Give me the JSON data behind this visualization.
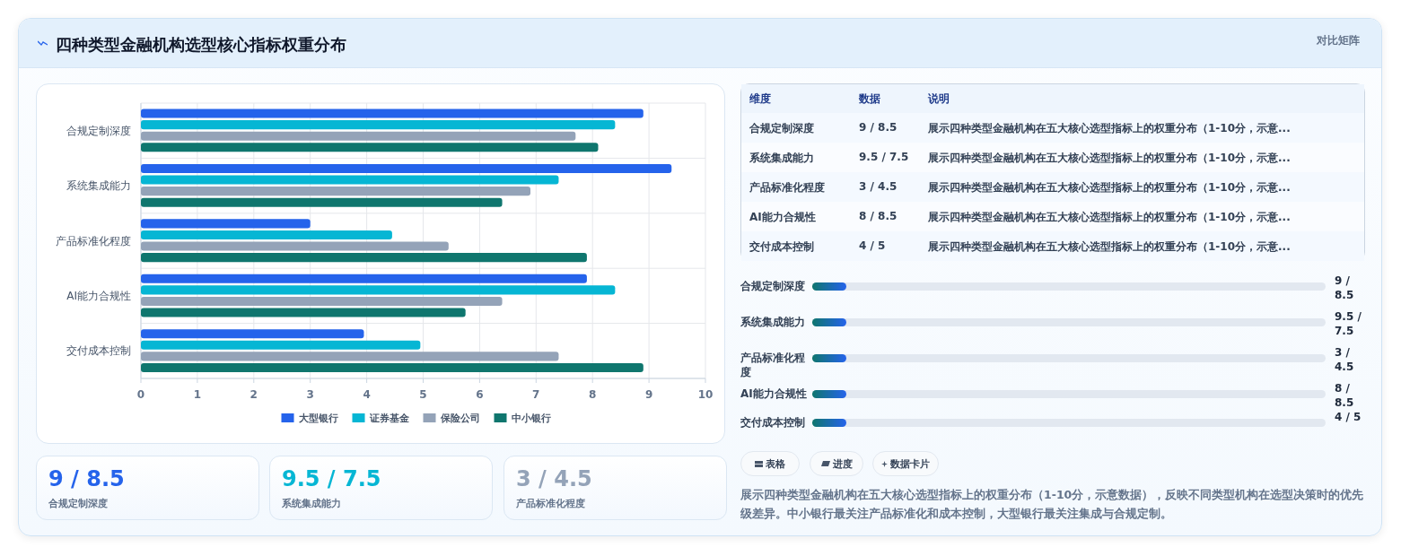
{
  "chart_data": [
    {
      "type": "bar",
      "orientation": "horizontal",
      "title": "四种类型金融机构选型核心指标权重分布",
      "categories": [
        "合规定制深度",
        "系统集成能力",
        "产品标准化程度",
        "AI能力合规性",
        "交付成本控制"
      ],
      "series": [
        {
          "name": "大型银行",
          "color": "#2563eb",
          "values": [
            8.9,
            9.4,
            3.0,
            7.9,
            3.95
          ]
        },
        {
          "name": "证券基金",
          "color": "#06b6d4",
          "values": [
            8.4,
            7.4,
            4.45,
            8.4,
            4.95
          ]
        },
        {
          "name": "保险公司",
          "color": "#94a3b8",
          "values": [
            7.7,
            6.9,
            5.45,
            6.4,
            7.4
          ]
        },
        {
          "name": "中小银行",
          "color": "#0f766e",
          "values": [
            8.1,
            6.4,
            7.9,
            5.75,
            8.9
          ]
        }
      ],
      "xlim": [
        0,
        10
      ],
      "xticks": [
        0,
        1,
        2,
        3,
        4,
        5,
        6,
        7,
        8,
        9,
        10
      ],
      "grid": true,
      "legend": "bottom"
    },
    {
      "type": "other",
      "categories": [
        "合规定制深度",
        "系统集成能力",
        "产品标准化程度",
        "AI能力合规性",
        "交付成本控制"
      ],
      "value_labels": [
        "9 / 8.5",
        "9.5 / 7.5",
        "3 / 4.5",
        "8 / 8.5",
        "4 / 5"
      ],
      "annotations": [
        "对比矩阵",
        "维度",
        "数据",
        "说明",
        "展示四种类型金融机构在五大核心选型指标上的权重分布（1-10分，示意...",
        "表格",
        "进度",
        "数据卡片",
        "展示四种类型金融机构在五大核心选型指标上的权重分布（1-10分，示意数据），反映不同类型机构在选型决策时的优先级差异。中小银行最关注产品标准化和成本控制，大型银行最关注集成与合规定制。"
      ]
    }
  ]
}
